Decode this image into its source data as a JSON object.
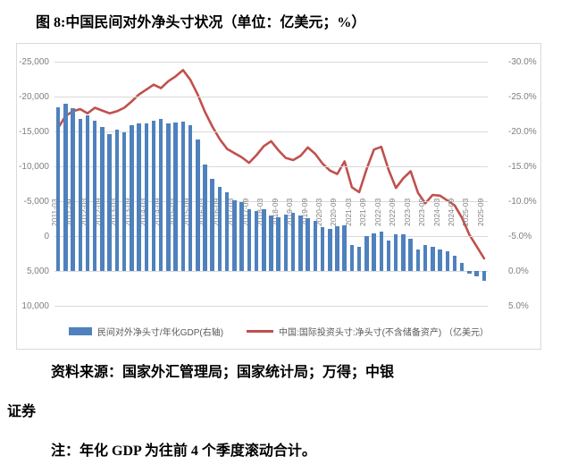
{
  "figure": {
    "title": "图 8:中国民间对外净头寸状况（单位：亿美元；%）"
  },
  "chart_data": {
    "type": "bar",
    "subtype": "bar+line combo, both value axes inverted (negative up)",
    "x": [
      "2011-03",
      "2011-06",
      "2011-09",
      "2011-12",
      "2012-03",
      "2012-06",
      "2012-09",
      "2012-12",
      "2013-03",
      "2013-06",
      "2013-09",
      "2013-12",
      "2014-03",
      "2014-06",
      "2014-09",
      "2014-12",
      "2015-03",
      "2015-06",
      "2015-09",
      "2015-12",
      "2016-03",
      "2016-06",
      "2016-09",
      "2016-12",
      "2017-03",
      "2017-06",
      "2017-09",
      "2017-12",
      "2018-03",
      "2018-06",
      "2018-09",
      "2018-12",
      "2019-03",
      "2019-06",
      "2019-09",
      "2019-12",
      "2020-03",
      "2020-06",
      "2020-09",
      "2020-12",
      "2021-03",
      "2021-06",
      "2021-09",
      "2021-12",
      "2022-03",
      "2022-06",
      "2022-09",
      "2022-12",
      "2023-03",
      "2023-06",
      "2023-09",
      "2023-12",
      "2024-03",
      "2024-06",
      "2024-09",
      "2024-12",
      "2025-03",
      "2025-06",
      "2025-09"
    ],
    "x_tick_labels": [
      "2011-03",
      "2011-09",
      "2012-03",
      "2012-09",
      "2013-03",
      "2013-09",
      "2014-03",
      "2014-09",
      "2015-03",
      "2015-09",
      "2016-03",
      "2016-09",
      "2017-03",
      "2017-09",
      "2018-03",
      "2018-09",
      "2019-03",
      "2019-09",
      "2020-03",
      "2020-09",
      "2021-03",
      "2021-09",
      "2022-03",
      "2022-09",
      "2023-03",
      "2023-09",
      "2024-03",
      "2024-09",
      "2025-03",
      "2025-09"
    ],
    "series": [
      {
        "name": "民间对外净头寸/年化GDP(右轴)",
        "type": "bar",
        "axis": "right",
        "unit": "%",
        "color": "#4F81BD",
        "values": [
          -23.4,
          -24.0,
          -23.3,
          -21.8,
          -22.3,
          -21.5,
          -20.7,
          -19.6,
          -20.3,
          -19.9,
          -20.9,
          -21.1,
          -21.2,
          -21.6,
          -21.8,
          -21.1,
          -21.3,
          -21.4,
          -20.9,
          -18.9,
          -15.3,
          -13.2,
          -12.0,
          -11.3,
          -10.1,
          -9.9,
          -8.9,
          -8.6,
          -8.8,
          -8.0,
          -7.7,
          -8.1,
          -8.3,
          -8.0,
          -7.6,
          -7.2,
          -6.3,
          -6.0,
          -6.4,
          -6.6,
          -3.7,
          -3.4,
          -5.0,
          -5.4,
          -5.7,
          -4.4,
          -5.3,
          -5.3,
          -4.6,
          -3.1,
          -3.7,
          -3.5,
          -3.1,
          -2.8,
          -2.2,
          -1.2,
          0.4,
          0.8,
          1.4
        ]
      },
      {
        "name": "中国:国际投资头寸:净头寸(不含储备资产) （亿美元）",
        "type": "line",
        "axis": "left",
        "unit": "亿美元",
        "color": "#C0504D",
        "values": [
          -15500,
          -17200,
          -17900,
          -18200,
          -17600,
          -18400,
          -18000,
          -17600,
          -17900,
          -18400,
          -19300,
          -20300,
          -21000,
          -21700,
          -21200,
          -22200,
          -22900,
          -23800,
          -22400,
          -20300,
          -17800,
          -15700,
          -13900,
          -12500,
          -11900,
          -11300,
          -10500,
          -11600,
          -12900,
          -13600,
          -12300,
          -11200,
          -10900,
          -11500,
          -12700,
          -11800,
          -10400,
          -9400,
          -8900,
          -10700,
          -7000,
          -6300,
          -9600,
          -12400,
          -12800,
          -9500,
          -6900,
          -8300,
          -9300,
          -6200,
          -4700,
          -5900,
          -5800,
          -5100,
          -4400,
          -2600,
          -200,
          1500,
          3200
        ]
      }
    ],
    "left_axis": {
      "min": -25000,
      "max": 10000,
      "inverted": true,
      "tick_step": 5000,
      "ticks": [
        "-25,000",
        "-20,000",
        "-15,000",
        "-10,000",
        "-5,000",
        "0",
        "5,000",
        "10,000"
      ]
    },
    "right_axis": {
      "min": -30,
      "max": 5,
      "inverted": true,
      "tick_step": 5,
      "ticks": [
        "-30.0%",
        "-25.0%",
        "-20.0%",
        "-15.0%",
        "-10.0%",
        "-5.0%",
        "0.0%",
        "5.0%"
      ]
    },
    "grid": true,
    "legend_position": "bottom",
    "title": "图 8:中国民间对外净头寸状况（单位：亿美元；%）"
  },
  "legend": {
    "bar_label": "民间对外净头寸/年化GDP(右轴)",
    "line_label": "中国:国际投资头寸:净头寸(不含储备资产) （亿美元）"
  },
  "colors": {
    "bar": "#4F81BD",
    "line": "#C0504D",
    "grid": "#D9D9D9",
    "axis_text": "#7F7F7F",
    "chart_border": "#D9D9D9"
  },
  "notes": {
    "source_line1": "资料来源：国家外汇管理局；国家统计局；万得；中银",
    "source_line2": "证券",
    "note_line": "注：年化 GDP 为往前 4 个季度滚动合计。"
  }
}
